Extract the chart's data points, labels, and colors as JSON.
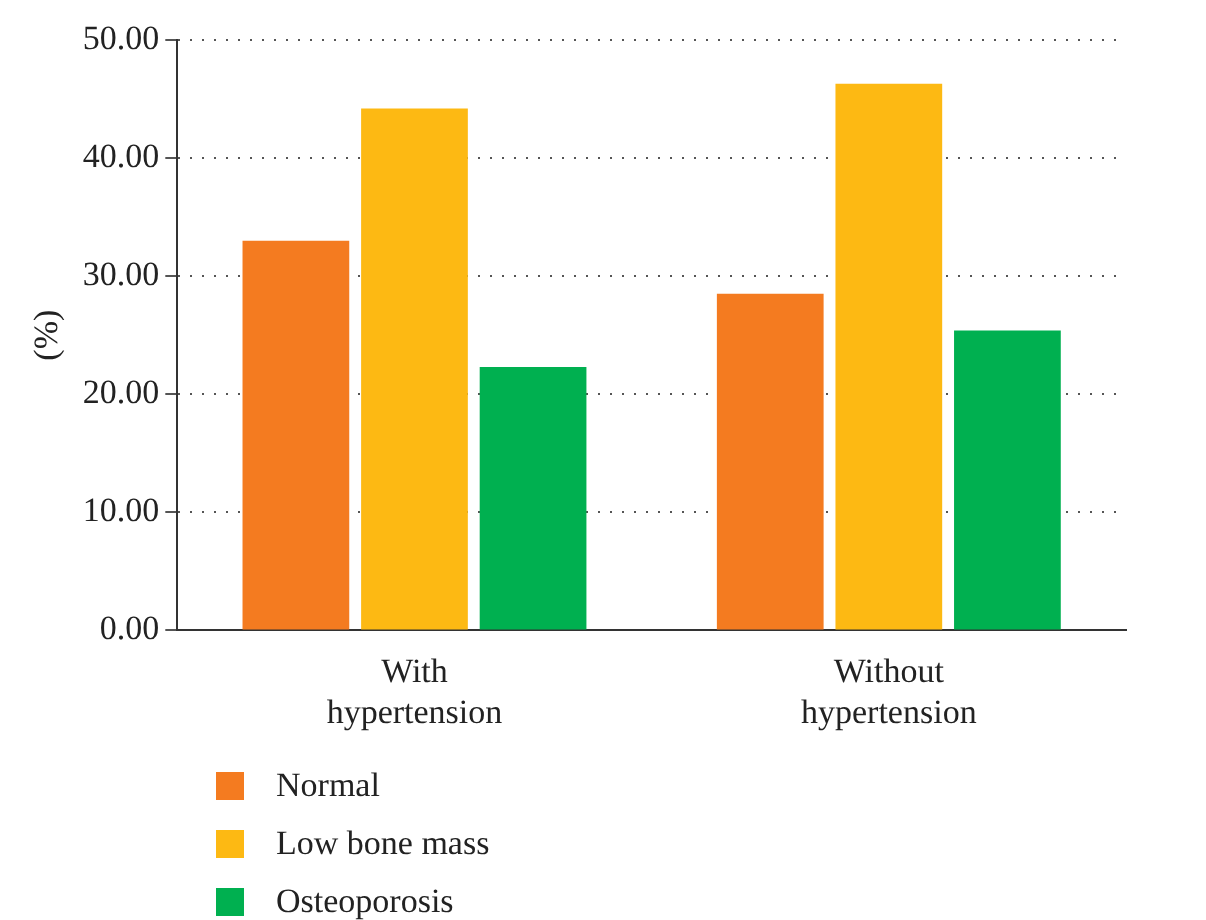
{
  "chart_data": {
    "type": "bar",
    "ylabel": "(%)",
    "categories": [
      "With\nhypertension",
      "Without\nhypertension"
    ],
    "series": [
      {
        "name": "Normal",
        "color": "#f47b20",
        "values": [
          33.0,
          28.5
        ]
      },
      {
        "name": "Low bone mass",
        "color": "#fdb913",
        "values": [
          44.2,
          46.3
        ]
      },
      {
        "name": "Osteoporosis",
        "color": "#00b050",
        "values": [
          22.3,
          25.4
        ]
      }
    ],
    "ylim": [
      0,
      50
    ],
    "yticks": [
      {
        "value": 0,
        "label": "0.00"
      },
      {
        "value": 10,
        "label": "10.00"
      },
      {
        "value": 20,
        "label": "20.00"
      },
      {
        "value": 30,
        "label": "30.00"
      },
      {
        "value": 40,
        "label": "40.00"
      },
      {
        "value": 50,
        "label": "50.00"
      }
    ],
    "grid": "y",
    "legend": "bottom left"
  }
}
